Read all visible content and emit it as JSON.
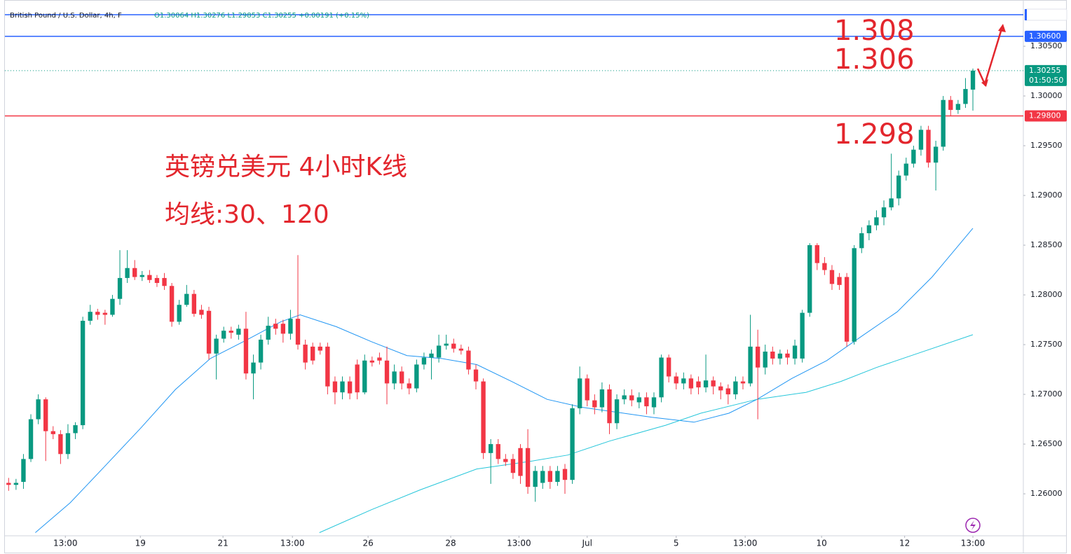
{
  "chart_data": {
    "type": "candlestick",
    "header": {
      "symbol": "British Pound / U.S. Dollar, 4h, F",
      "ohlc": "O1.30064 H1.30276 L1.29853 C1.30255 +0.00191 (+0.15%)"
    },
    "annotations": [
      "英镑兑美元 4小时K线",
      "均线:30、120",
      "1.308",
      "1.306",
      "1.298"
    ],
    "up_color": "#089981",
    "down_color": "#f23645",
    "open": [
      1.2611,
      1.2609,
      1.2612,
      1.2635,
      1.2675,
      1.2695,
      1.2663,
      1.266,
      1.264,
      1.2661,
      1.2669,
      1.2774,
      1.2783,
      1.2782,
      1.278,
      1.2796,
      1.2817,
      1.2827,
      1.2818,
      1.282,
      1.2817,
      1.2817,
      1.2809,
      1.2773,
      1.279,
      1.2801,
      1.2785,
      1.2784,
      1.2741,
      1.2756,
      1.2764,
      1.276,
      1.2766,
      1.2721,
      1.2732,
      1.2755,
      1.2771,
      1.2771,
      1.2761,
      1.2776,
      1.275,
      1.2748,
      1.2748,
      1.2748,
      1.2713,
      1.2702,
      1.2713,
      1.273,
      1.2702,
      1.2734,
      1.2737,
      1.2734,
      1.2711,
      1.2723,
      1.2711,
      1.2706,
      1.273,
      1.2737,
      1.2737,
      1.2749,
      1.2751,
      1.2746,
      1.2744,
      1.2725,
      1.2713,
      1.2641,
      1.265,
      1.2635,
      1.2635,
      1.2646,
      1.2646,
      1.2607,
      1.2611,
      1.2623,
      1.2612,
      1.2625,
      1.2614,
      1.2686,
      1.2716,
      1.2694,
      1.2687,
      1.2705,
      1.2671,
      1.2695,
      1.2699,
      1.2692,
      1.2697,
      1.2687,
      1.2697,
      1.2737,
      1.2718,
      1.2711,
      1.2716,
      1.2713,
      1.2707,
      1.2714,
      1.2708,
      1.2706,
      1.27,
      1.2713,
      1.2711,
      1.2748,
      1.2727,
      1.2743,
      1.2736,
      1.2741,
      1.2736,
      1.2736,
      1.2782,
      1.285,
      1.2832,
      1.2825,
      1.2818,
      1.2818,
      1.2753,
      1.2847,
      1.2862,
      1.287,
      1.2878,
      1.2888,
      1.2897,
      1.292,
      1.2932,
      1.2946,
      1.2966,
      1.2933,
      1.2949,
      1.2996,
      1.2986,
      1.2992,
      1.30064
    ],
    "high": [
      1.2616,
      1.2615,
      1.264,
      1.268,
      1.27,
      1.2697,
      1.2668,
      1.2664,
      1.267,
      1.2672,
      1.2778,
      1.279,
      1.2786,
      1.2785,
      1.28,
      1.2845,
      1.2845,
      1.2835,
      1.2824,
      1.2825,
      1.282,
      1.2822,
      1.2812,
      1.2795,
      1.281,
      1.2805,
      1.279,
      1.2788,
      1.276,
      1.2768,
      1.2768,
      1.277,
      1.2783,
      1.274,
      1.276,
      1.2778,
      1.2776,
      1.2775,
      1.2785,
      1.284,
      1.2755,
      1.2752,
      1.2752,
      1.2752,
      1.2718,
      1.2718,
      1.2718,
      1.2735,
      1.274,
      1.2738,
      1.2742,
      1.2748,
      1.273,
      1.2728,
      1.2716,
      1.2735,
      1.2742,
      1.2745,
      1.276,
      1.276,
      1.2756,
      1.275,
      1.2748,
      1.273,
      1.2716,
      1.2655,
      1.2655,
      1.264,
      1.264,
      1.265,
      1.2665,
      1.2628,
      1.2628,
      1.2628,
      1.2628,
      1.263,
      1.269,
      1.2728,
      1.272,
      1.27,
      1.2712,
      1.271,
      1.27,
      1.2705,
      1.2705,
      1.2702,
      1.2702,
      1.2702,
      1.274,
      1.274,
      1.2722,
      1.2722,
      1.272,
      1.2718,
      1.274,
      1.2718,
      1.2712,
      1.271,
      1.2718,
      1.2718,
      1.278,
      1.2765,
      1.275,
      1.2748,
      1.2745,
      1.2745,
      1.2755,
      1.2785,
      1.2852,
      1.2852,
      1.2838,
      1.283,
      1.2822,
      1.2822,
      1.285,
      1.2868,
      1.2875,
      1.2885,
      1.2895,
      1.2942,
      1.2925,
      1.2938,
      1.295,
      1.297,
      1.297,
      1.2955,
      1.3,
      1.3,
      1.2996,
      1.3018,
      1.30276
    ],
    "low": [
      1.2603,
      1.2604,
      1.2605,
      1.2632,
      1.267,
      1.2633,
      1.2655,
      1.263,
      1.2635,
      1.2655,
      1.2665,
      1.277,
      1.2775,
      1.277,
      1.2778,
      1.279,
      1.2812,
      1.2815,
      1.2814,
      1.2812,
      1.2808,
      1.2805,
      1.2768,
      1.277,
      1.2788,
      1.2778,
      1.2776,
      1.2735,
      1.2715,
      1.2752,
      1.2756,
      1.2755,
      1.2715,
      1.2695,
      1.2725,
      1.275,
      1.276,
      1.2752,
      1.2755,
      1.2745,
      1.2725,
      1.273,
      1.274,
      1.27,
      1.269,
      1.2695,
      1.2695,
      1.2695,
      1.27,
      1.2728,
      1.273,
      1.269,
      1.2705,
      1.2705,
      1.27,
      1.2702,
      1.2725,
      1.2715,
      1.2732,
      1.2745,
      1.2742,
      1.274,
      1.272,
      1.2705,
      1.2635,
      1.261,
      1.263,
      1.2628,
      1.2615,
      1.261,
      1.26,
      1.2592,
      1.2605,
      1.2605,
      1.2608,
      1.26,
      1.261,
      1.268,
      1.2688,
      1.268,
      1.2682,
      1.266,
      1.2665,
      1.269,
      1.2688,
      1.2686,
      1.268,
      1.268,
      1.2692,
      1.2712,
      1.2705,
      1.2705,
      1.27,
      1.27,
      1.2702,
      1.27,
      1.2695,
      1.269,
      1.2695,
      1.2705,
      1.2708,
      1.2675,
      1.272,
      1.273,
      1.273,
      1.273,
      1.273,
      1.2732,
      1.2778,
      1.2825,
      1.282,
      1.2805,
      1.2805,
      1.2748,
      1.275,
      1.2842,
      1.2855,
      1.2865,
      1.287,
      1.2885,
      1.289,
      1.2915,
      1.2928,
      1.294,
      1.2928,
      1.2905,
      1.2945,
      1.298,
      1.2982,
      1.2988,
      1.29853
    ],
    "close": [
      1.2609,
      1.2611,
      1.2635,
      1.2675,
      1.2695,
      1.2663,
      1.266,
      1.264,
      1.2661,
      1.2669,
      1.2774,
      1.2783,
      1.278,
      1.278,
      1.2796,
      1.2817,
      1.2827,
      1.2818,
      1.282,
      1.2815,
      1.2812,
      1.2809,
      1.2773,
      1.279,
      1.2801,
      1.2781,
      1.278,
      1.2741,
      1.2756,
      1.2764,
      1.2762,
      1.2766,
      1.2721,
      1.2732,
      1.2755,
      1.2769,
      1.2766,
      1.2761,
      1.2776,
      1.275,
      1.2732,
      1.2734,
      1.2744,
      1.2708,
      1.2702,
      1.2713,
      1.2701,
      1.2702,
      1.2734,
      1.2732,
      1.2734,
      1.2711,
      1.2723,
      1.2711,
      1.2706,
      1.273,
      1.2737,
      1.2741,
      1.2749,
      1.2751,
      1.2746,
      1.2744,
      1.2725,
      1.2713,
      1.2641,
      1.265,
      1.2635,
      1.2632,
      1.2621,
      1.2618,
      1.2607,
      1.2623,
      1.2623,
      1.2612,
      1.2623,
      1.2614,
      1.2686,
      1.2716,
      1.2694,
      1.2687,
      1.2705,
      1.2671,
      1.2695,
      1.2699,
      1.2694,
      1.2697,
      1.2688,
      1.2697,
      1.2737,
      1.2718,
      1.2711,
      1.2716,
      1.2706,
      1.2707,
      1.2714,
      1.2708,
      1.2704,
      1.27,
      1.2713,
      1.2711,
      1.2748,
      1.2727,
      1.2743,
      1.2736,
      1.2741,
      1.2737,
      1.2749,
      1.2782,
      1.285,
      1.2832,
      1.2825,
      1.2811,
      1.281,
      1.2753,
      1.2847,
      1.2862,
      1.287,
      1.2878,
      1.2888,
      1.2897,
      1.292,
      1.2932,
      1.2946,
      1.2966,
      1.2933,
      1.2949,
      1.2996,
      1.2986,
      1.2992,
      1.3007,
      1.30255
    ],
    "moving_averages": [
      {
        "color": "#2196f3",
        "x": [
          3.6,
          8.3,
          13,
          17.8,
          22.5,
          27.2,
          31.9,
          36.7,
          39.3,
          44.2,
          48.9,
          53.7,
          58.4,
          63.1,
          67.8,
          72.6,
          77.3,
          82,
          86.7,
          92.4,
          97.1,
          100.9,
          105.6,
          110.3,
          115.1,
          119.8,
          124.5,
          130
        ],
        "values": [
          1.2561,
          1.2591,
          1.2628,
          1.2666,
          1.2705,
          1.2736,
          1.2754,
          1.2773,
          1.278,
          1.2768,
          1.2753,
          1.2739,
          1.2736,
          1.273,
          1.2713,
          1.2695,
          1.2687,
          1.2682,
          1.2677,
          1.2672,
          1.2681,
          1.2695,
          1.2716,
          1.2734,
          1.2759,
          1.2783,
          1.2818,
          1.2867
        ]
      },
      {
        "color": "#26c6da",
        "x": [
          41.9,
          48.9,
          55.5,
          63.1,
          70.6,
          75.4,
          81,
          88.6,
          93.3,
          100.9,
          107.5,
          112.2,
          117,
          121.7,
          130
        ],
        "values": [
          1.2561,
          1.2584,
          1.2604,
          1.2625,
          1.2633,
          1.2639,
          1.2653,
          1.2669,
          1.2681,
          1.2695,
          1.2702,
          1.2713,
          1.2727,
          1.2739,
          1.276
        ]
      }
    ],
    "hlines": [
      {
        "value": 1.30817,
        "color": "#2962ff"
      },
      {
        "value": 1.306,
        "label": "1.30600",
        "color": "#2962ff"
      },
      {
        "value": 1.298,
        "label": "1.29800",
        "color": "#f23645"
      }
    ],
    "last_price": {
      "value": 1.30255,
      "label": "1.30255",
      "countdown": "01:50:50",
      "color": "#089981"
    },
    "xlim": [
      -0.5,
      136.8
    ],
    "ylim": [
      1.25578,
      1.30965
    ],
    "xticks": [
      {
        "value": 7.65,
        "label": "13:00"
      },
      {
        "value": 17.76,
        "label": "19"
      },
      {
        "value": 28.9,
        "label": "21"
      },
      {
        "value": 38.26,
        "label": "13:00"
      },
      {
        "value": 48.46,
        "label": "26"
      },
      {
        "value": 59.6,
        "label": "28"
      },
      {
        "value": 68.8,
        "label": "13:00"
      },
      {
        "value": 78.0,
        "label": "Jul"
      },
      {
        "value": 90.0,
        "label": "5"
      },
      {
        "value": 99.3,
        "label": "13:00"
      },
      {
        "value": 109.6,
        "label": "10"
      },
      {
        "value": 120.8,
        "label": "12"
      },
      {
        "value": 130.0,
        "label": "13:00"
      }
    ],
    "yticks": [
      {
        "value": 1.26,
        "label": "1.26000"
      },
      {
        "value": 1.265,
        "label": "1.26500"
      },
      {
        "value": 1.27,
        "label": "1.27000"
      },
      {
        "value": 1.275,
        "label": "1.27500"
      },
      {
        "value": 1.28,
        "label": "1.28000"
      },
      {
        "value": 1.285,
        "label": "1.28500"
      },
      {
        "value": 1.29,
        "label": "1.29000"
      },
      {
        "value": 1.295,
        "label": "1.29500"
      },
      {
        "value": 1.3,
        "label": "1.30000"
      },
      {
        "value": 1.305,
        "label": "1.30500"
      }
    ],
    "grid": false
  }
}
